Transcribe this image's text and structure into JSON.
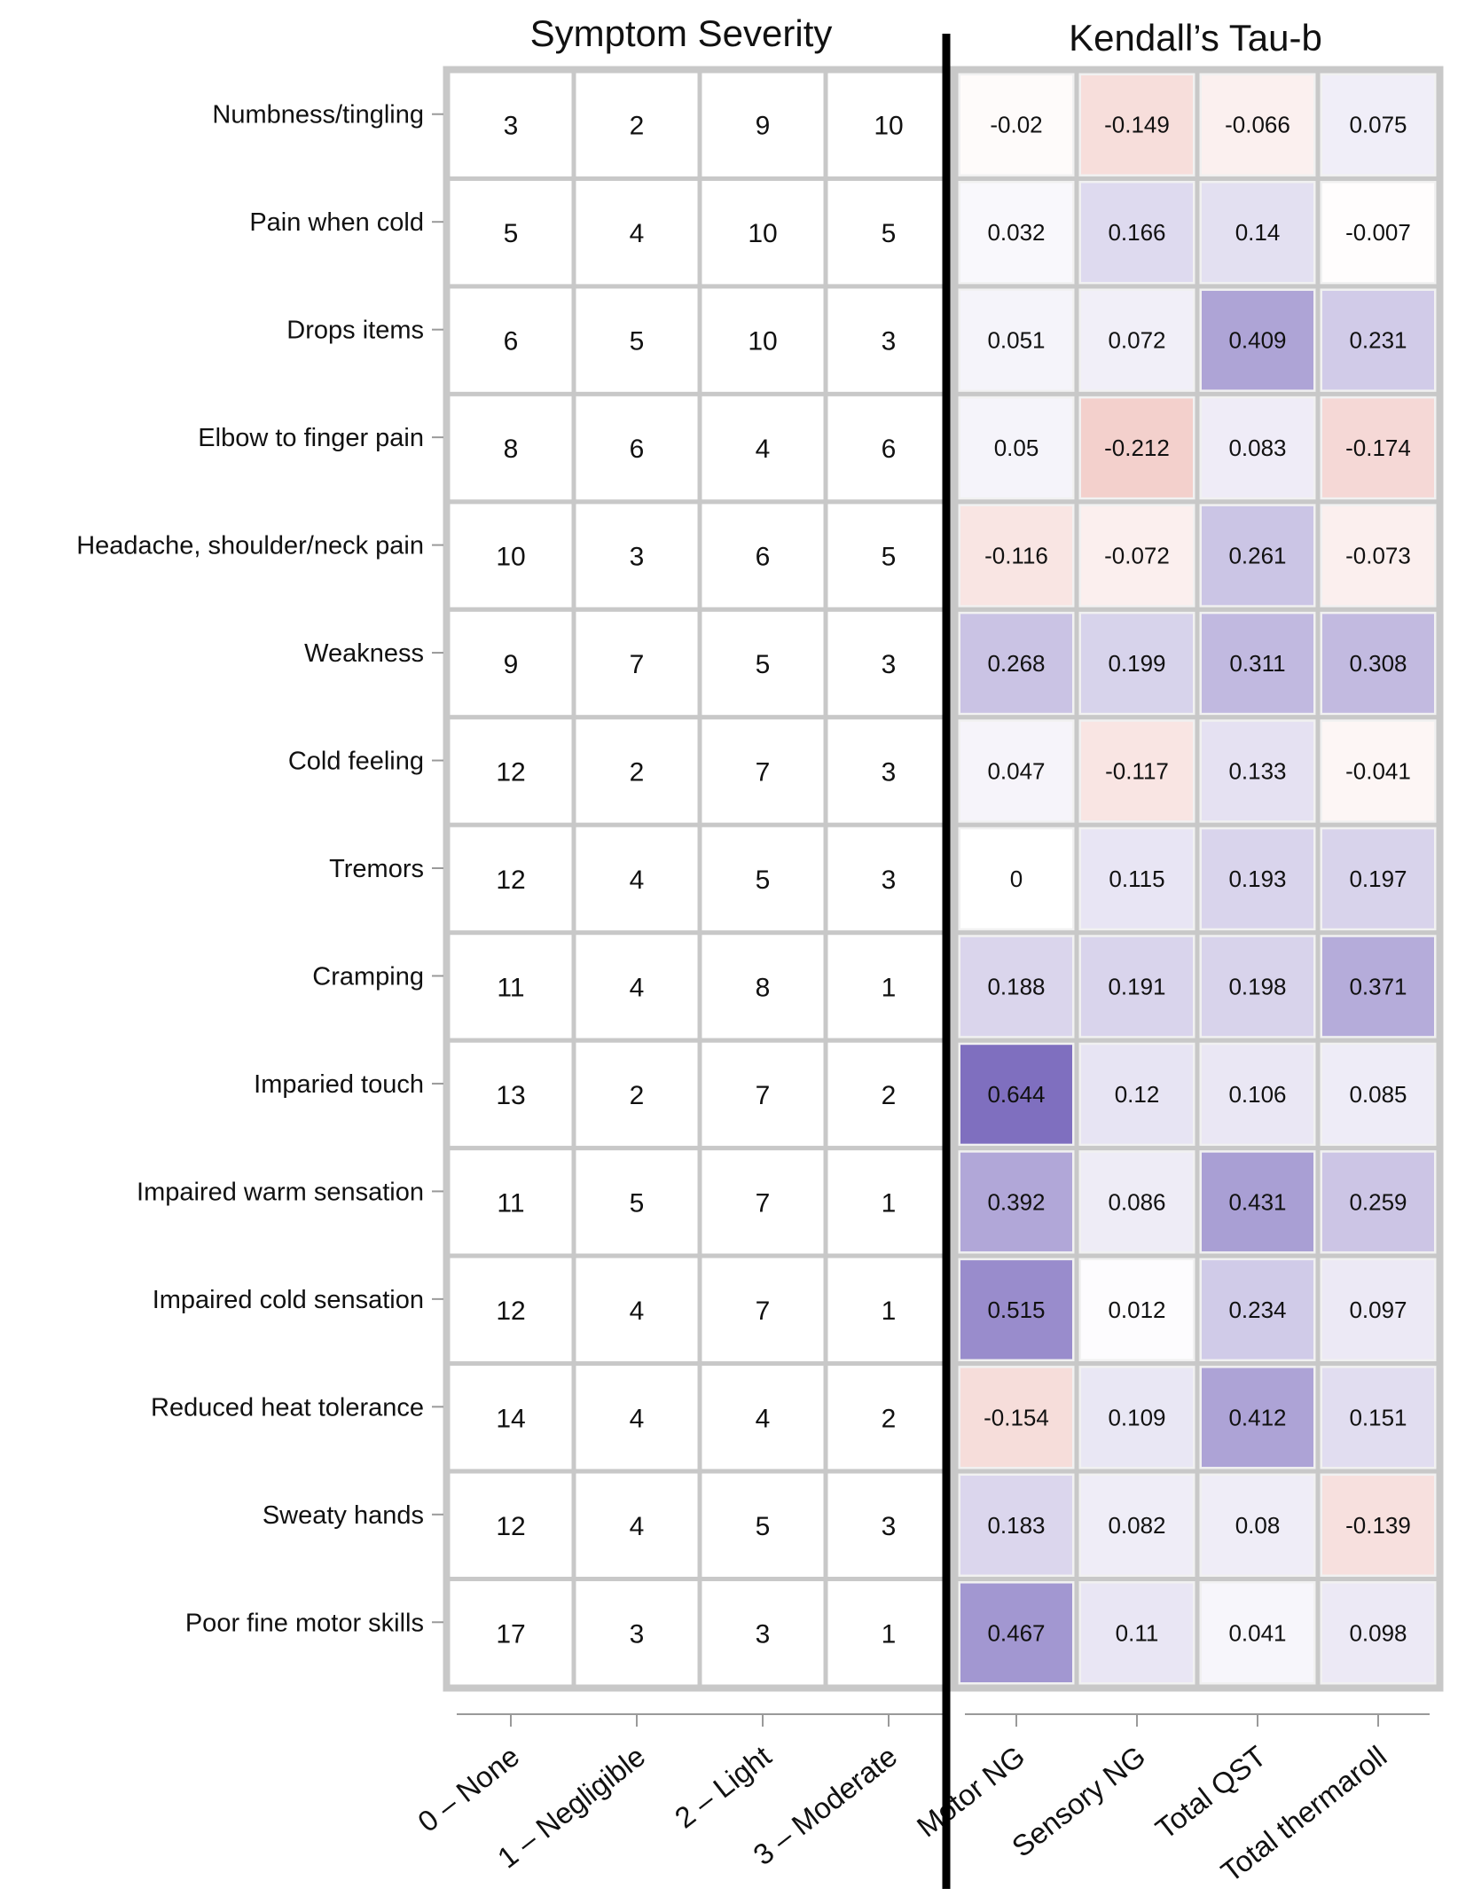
{
  "chart_data": {
    "type": "heatmap",
    "panels": [
      {
        "title": "Symptom Severity",
        "columns": [
          "0 – None",
          "1 – Negligible",
          "2 – Light",
          "3 – Moderate"
        ],
        "value_type": "count"
      },
      {
        "title": "Kendall’s Tau-b",
        "columns": [
          "Motor NG",
          "Sensory NG",
          "Total QST",
          "Total thermaroll"
        ],
        "value_type": "correlation"
      }
    ],
    "rows": [
      "Numbness/tingling",
      "Pain when cold",
      "Drops items",
      "Elbow to finger pain",
      "Headache, shoulder/neck pain",
      "Weakness",
      "Cold feeling",
      "Tremors",
      "Cramping",
      "Imparied touch",
      "Impaired warm sensation",
      "Impaired cold sensation",
      "Reduced heat tolerance",
      "Sweaty hands",
      "Poor fine motor skills"
    ],
    "severity_counts": [
      [
        3,
        2,
        9,
        10
      ],
      [
        5,
        4,
        10,
        5
      ],
      [
        6,
        5,
        10,
        3
      ],
      [
        8,
        6,
        4,
        6
      ],
      [
        10,
        3,
        6,
        5
      ],
      [
        9,
        7,
        5,
        3
      ],
      [
        12,
        2,
        7,
        3
      ],
      [
        12,
        4,
        5,
        3
      ],
      [
        11,
        4,
        8,
        1
      ],
      [
        13,
        2,
        7,
        2
      ],
      [
        11,
        5,
        7,
        1
      ],
      [
        12,
        4,
        7,
        1
      ],
      [
        14,
        4,
        4,
        2
      ],
      [
        12,
        4,
        5,
        3
      ],
      [
        17,
        3,
        3,
        1
      ]
    ],
    "tau_b": [
      [
        "-0.02",
        "-0.149",
        "-0.066",
        "0.075"
      ],
      [
        "0.032",
        "0.166",
        "0.14",
        "-0.007"
      ],
      [
        "0.051",
        "0.072",
        "0.409",
        "0.231"
      ],
      [
        "0.05",
        "-0.212",
        "0.083",
        "-0.174"
      ],
      [
        "-0.116",
        "-0.072",
        "0.261",
        "-0.073"
      ],
      [
        "0.268",
        "0.199",
        "0.311",
        "0.308"
      ],
      [
        "0.047",
        "-0.117",
        "0.133",
        "-0.041"
      ],
      [
        "0",
        "0.115",
        "0.193",
        "0.197"
      ],
      [
        "0.188",
        "0.191",
        "0.198",
        "0.371"
      ],
      [
        "0.644",
        "0.12",
        "0.106",
        "0.085"
      ],
      [
        "0.392",
        "0.086",
        "0.431",
        "0.259"
      ],
      [
        "0.515",
        "0.012",
        "0.234",
        "0.097"
      ],
      [
        "-0.154",
        "0.109",
        "0.412",
        "0.151"
      ],
      [
        "0.183",
        "0.082",
        "0.08",
        "-0.139"
      ],
      [
        "0.467",
        "0.11",
        "0.041",
        "0.098"
      ]
    ],
    "color_scale": {
      "positive": "#7f6fbf",
      "negative": "#e8a39c",
      "neutral": "#ffffff",
      "max_abs": 0.644
    },
    "colors": {
      "grid_line": "#c8c8c8",
      "divider": "#000000",
      "axis": "#9a9a9a",
      "text": "#111111"
    }
  }
}
